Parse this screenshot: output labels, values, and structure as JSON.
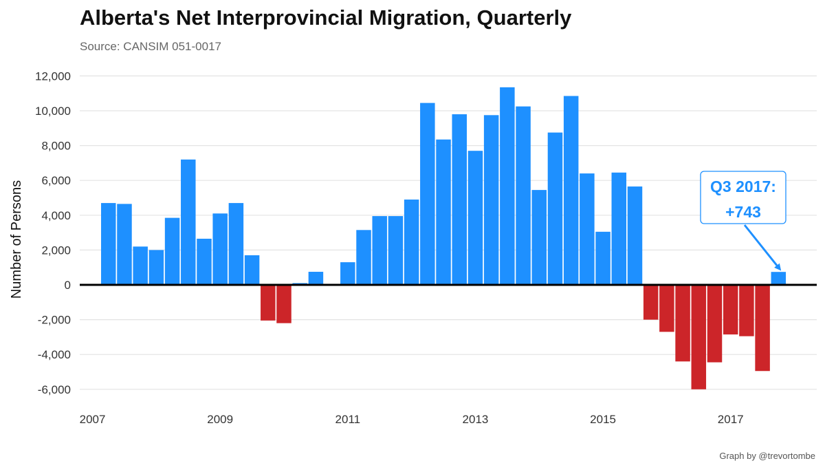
{
  "header": {
    "title": "Alberta's Net Interprovincial Migration, Quarterly",
    "subtitle": "Source: CANSIM 051-0017"
  },
  "footer": {
    "credit": "Graph by @trevortombe"
  },
  "colors": {
    "positive": "#1e90ff",
    "negative": "#cc2529",
    "annotation": "#1e90ff",
    "gridline": "#e3e3e3",
    "zero_line": "#000000"
  },
  "chart_data": {
    "type": "bar",
    "ylabel": "Number of Persons",
    "xlabel": "",
    "ylim": [
      -7000,
      12500
    ],
    "xlim": [
      2006.8,
      2018.35
    ],
    "y_ticks": [
      -6000,
      -4000,
      -2000,
      0,
      2000,
      4000,
      6000,
      8000,
      10000,
      12000
    ],
    "y_tick_labels": [
      "-6,000",
      "-4,000",
      "-2,000",
      "0",
      "2,000",
      "4,000",
      "6,000",
      "8,000",
      "10,000",
      "12,000"
    ],
    "x_ticks": [
      2007,
      2009,
      2011,
      2013,
      2015,
      2017
    ],
    "x_tick_labels": [
      "2007",
      "2009",
      "2011",
      "2013",
      "2015",
      "2017"
    ],
    "grid": true,
    "x": [
      2007.25,
      2007.5,
      2007.75,
      2008.0,
      2008.25,
      2008.5,
      2008.75,
      2009.0,
      2009.25,
      2009.5,
      2009.75,
      2010.0,
      2010.25,
      2010.5,
      2010.75,
      2011.0,
      2011.25,
      2011.5,
      2011.75,
      2012.0,
      2012.25,
      2012.5,
      2012.75,
      2013.0,
      2013.25,
      2013.5,
      2013.75,
      2014.0,
      2014.25,
      2014.5,
      2014.75,
      2015.0,
      2015.25,
      2015.5,
      2015.75,
      2016.0,
      2016.25,
      2016.5,
      2016.75,
      2017.0,
      2017.25,
      2017.5,
      2017.75
    ],
    "values": [
      4700,
      4650,
      2200,
      2000,
      3850,
      7200,
      2650,
      4100,
      4700,
      1700,
      -2050,
      -2200,
      100,
      750,
      0,
      1300,
      3150,
      3950,
      3950,
      4900,
      10450,
      8350,
      9800,
      7700,
      9750,
      11350,
      10250,
      5450,
      8750,
      10850,
      6400,
      3050,
      6450,
      5650,
      -2000,
      -2700,
      -4400,
      -6000,
      -4450,
      -2850,
      -2950,
      -4950,
      743
    ],
    "annotation": {
      "line1": "Q3 2017:",
      "line2": "+743",
      "x": 2017.75,
      "y": 743
    }
  }
}
